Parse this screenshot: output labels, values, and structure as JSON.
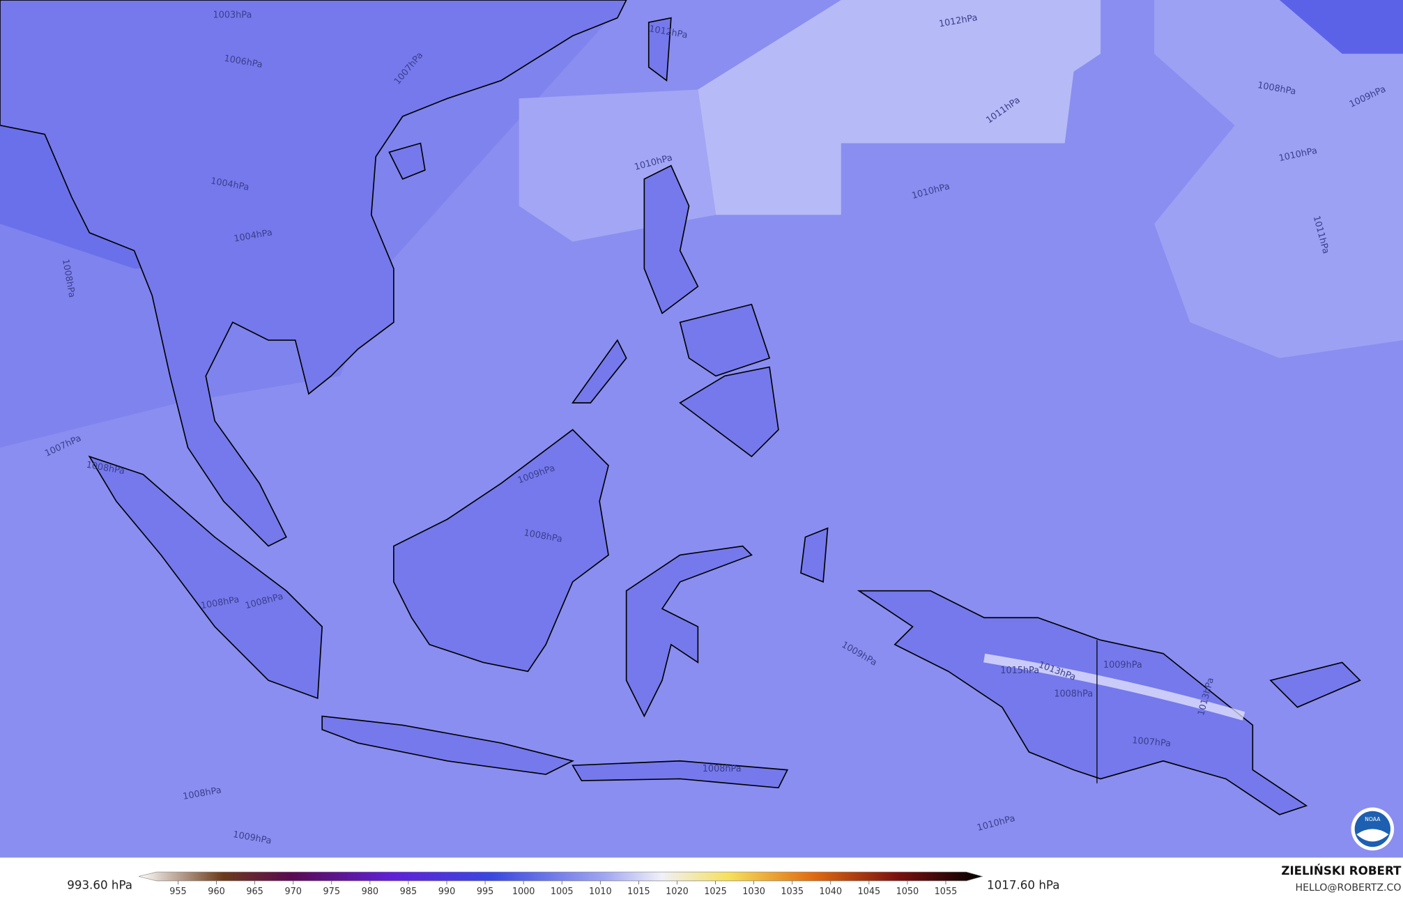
{
  "map": {
    "contour_labels": [
      "1003hPa",
      "1006hPa",
      "1007hPa",
      "1012hPa",
      "1011hPa",
      "1010hPa",
      "1010hPa",
      "1008hPa",
      "1009hPa",
      "1011hPa",
      "1012hPa",
      "1010hPa",
      "1004hPa",
      "1004hPa",
      "1008hPa",
      "1007hPa",
      "1008hPa",
      "1009hPa",
      "1008hPa",
      "1008hPa",
      "1008hPa",
      "1009hPa",
      "1009hPa",
      "1013hPa",
      "1015hPa",
      "1008hPa",
      "1007hPa",
      "1013hPa",
      "1008hPa",
      "1008hPa",
      "1009hPa",
      "1010hPa"
    ],
    "logo": "NOAA"
  },
  "colorbar": {
    "min_label": "993.60 hPa",
    "max_label": "1017.60 hPa",
    "ticks": [
      955,
      960,
      965,
      970,
      975,
      980,
      985,
      990,
      995,
      1000,
      1005,
      1010,
      1015,
      1020,
      1025,
      1030,
      1035,
      1040,
      1045,
      1050,
      1055
    ]
  },
  "credits": {
    "author": "ZIELIŃSKI ROBERT",
    "contact": "HELLO@ROBERTZ.CO"
  }
}
